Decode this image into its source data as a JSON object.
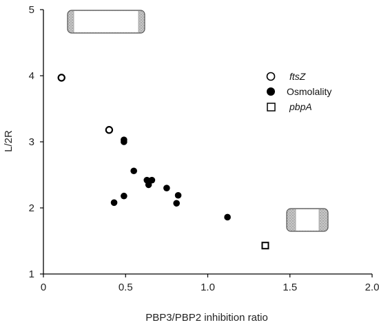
{
  "chart_data": {
    "type": "scatter",
    "xlabel": "PBP3/PBP2 inhibition ratio",
    "ylabel": "L/2R",
    "xlim": [
      0,
      2.0
    ],
    "ylim": [
      1,
      5
    ],
    "xticks": [
      0,
      0.5,
      1.0,
      1.5,
      2.0
    ],
    "xtick_labels": [
      "0",
      "0.5",
      "1.0",
      "1.5",
      "2.0"
    ],
    "yticks": [
      1,
      2,
      3,
      4,
      5
    ],
    "ytick_labels": [
      "1",
      "2",
      "3",
      "4",
      "5"
    ],
    "grid": false,
    "legend_position": "upper right",
    "series": [
      {
        "name": "ftsZ",
        "italic": true,
        "marker": "open-circle",
        "points": [
          {
            "x": 0.11,
            "y": 3.97
          },
          {
            "x": 0.4,
            "y": 3.18
          }
        ]
      },
      {
        "name": "Osmolality",
        "italic": false,
        "marker": "filled-circle",
        "points": [
          {
            "x": 0.49,
            "y": 3.03
          },
          {
            "x": 0.49,
            "y": 3.0
          },
          {
            "x": 0.55,
            "y": 2.56
          },
          {
            "x": 0.63,
            "y": 2.42
          },
          {
            "x": 0.66,
            "y": 2.42
          },
          {
            "x": 0.64,
            "y": 2.35
          },
          {
            "x": 0.75,
            "y": 2.3
          },
          {
            "x": 0.82,
            "y": 2.19
          },
          {
            "x": 0.81,
            "y": 2.07
          },
          {
            "x": 0.49,
            "y": 2.18
          },
          {
            "x": 0.43,
            "y": 2.08
          },
          {
            "x": 1.12,
            "y": 1.86
          }
        ]
      },
      {
        "name": "pbpA",
        "italic": true,
        "marker": "open-square",
        "points": [
          {
            "x": 1.35,
            "y": 1.43
          }
        ]
      }
    ],
    "cell_icons": [
      {
        "shape": "elongated-cell"
      },
      {
        "shape": "short-cell"
      }
    ]
  }
}
